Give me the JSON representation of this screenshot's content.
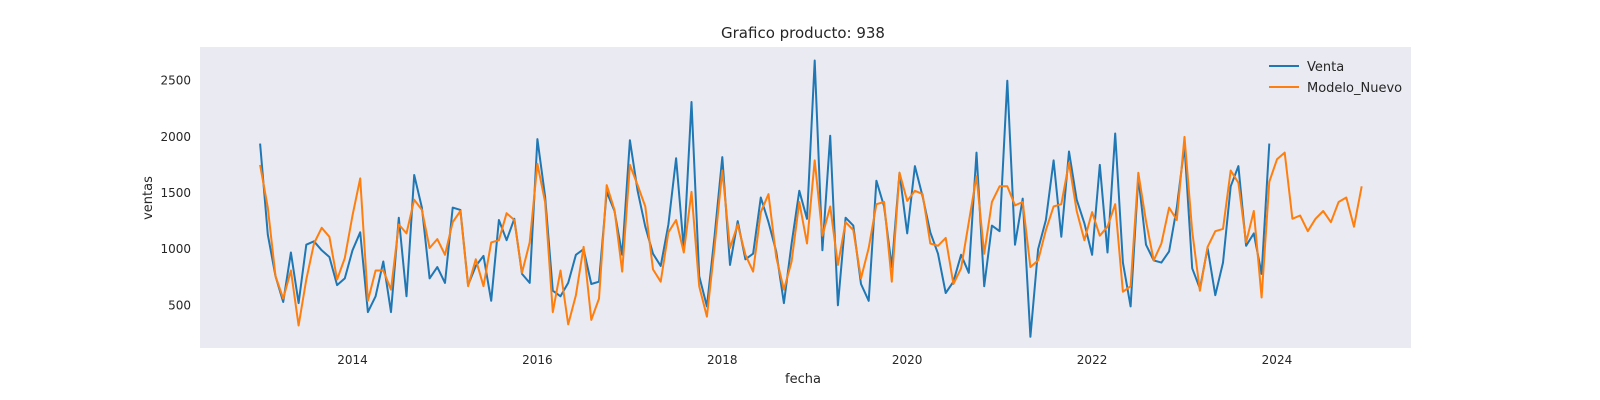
{
  "chart_data": {
    "type": "line",
    "title": "Grafico producto: 938",
    "xlabel": "fecha",
    "ylabel": "ventas",
    "xlim": [
      2012.35,
      2025.45
    ],
    "ylim": [
      120,
      2800
    ],
    "xticks": [
      2014,
      2016,
      2018,
      2020,
      2022,
      2024
    ],
    "yticks": [
      500,
      1000,
      1500,
      2000,
      2500
    ],
    "grid": false,
    "legend_position": "top-right",
    "colors": {
      "plot_bg": "#eaeaf2",
      "venta": "#1f77b4",
      "modelo": "#ff7f0e"
    },
    "series": [
      {
        "name": "Venta",
        "start": "2013-01",
        "values": [
          1940,
          1130,
          760,
          530,
          970,
          520,
          1040,
          1070,
          990,
          930,
          680,
          740,
          990,
          1150,
          440,
          580,
          890,
          440,
          1280,
          580,
          1660,
          1370,
          740,
          840,
          700,
          1370,
          1350,
          680,
          850,
          940,
          540,
          1260,
          1080,
          1270,
          780,
          700,
          1980,
          1470,
          630,
          580,
          700,
          950,
          1000,
          690,
          710,
          1510,
          1340,
          950,
          1970,
          1520,
          1200,
          960,
          850,
          1220,
          1810,
          1000,
          2310,
          760,
          490,
          1120,
          1820,
          860,
          1250,
          910,
          960,
          1460,
          1240,
          980,
          520,
          1050,
          1520,
          1270,
          2680,
          990,
          2010,
          500,
          1280,
          1210,
          690,
          540,
          1610,
          1380,
          840,
          1680,
          1140,
          1740,
          1470,
          1150,
          960,
          610,
          710,
          950,
          790,
          1860,
          670,
          1210,
          1160,
          2500,
          1040,
          1450,
          220,
          1000,
          1260,
          1790,
          1110,
          1870,
          1440,
          1230,
          950,
          1750,
          970,
          2030,
          880,
          490,
          1640,
          1040,
          900,
          880,
          980,
          1370,
          1920,
          830,
          650,
          1010,
          590,
          880,
          1560,
          1740,
          1030,
          1140,
          780,
          1940
        ]
      },
      {
        "name": "Modelo_Nuevo",
        "start": "2013-01",
        "values": [
          1750,
          1370,
          760,
          560,
          810,
          320,
          730,
          1050,
          1190,
          1110,
          730,
          920,
          1300,
          1630,
          540,
          810,
          810,
          640,
          1220,
          1140,
          1440,
          1350,
          1010,
          1090,
          950,
          1240,
          1340,
          670,
          910,
          670,
          1060,
          1080,
          1320,
          1260,
          790,
          1060,
          1760,
          1420,
          440,
          810,
          330,
          590,
          1020,
          370,
          560,
          1570,
          1350,
          800,
          1750,
          1570,
          1380,
          820,
          710,
          1150,
          1260,
          970,
          1510,
          670,
          400,
          1020,
          1700,
          1010,
          1220,
          950,
          800,
          1330,
          1490,
          930,
          640,
          890,
          1420,
          1050,
          1790,
          1120,
          1380,
          860,
          1240,
          1170,
          740,
          1010,
          1400,
          1420,
          710,
          1680,
          1430,
          1520,
          1490,
          1050,
          1030,
          1100,
          690,
          830,
          1240,
          1650,
          960,
          1420,
          1560,
          1560,
          1390,
          1420,
          840,
          900,
          1170,
          1380,
          1400,
          1770,
          1340,
          1080,
          1330,
          1120,
          1200,
          1400,
          620,
          670,
          1680,
          1250,
          900,
          1050,
          1370,
          1260,
          2000,
          1160,
          630,
          1020,
          1160,
          1180,
          1700,
          1590,
          1060,
          1340,
          570,
          1600,
          1800,
          1860,
          1270,
          1300,
          1160,
          1270,
          1340,
          1240,
          1420,
          1460,
          1200,
          1560
        ]
      }
    ]
  }
}
